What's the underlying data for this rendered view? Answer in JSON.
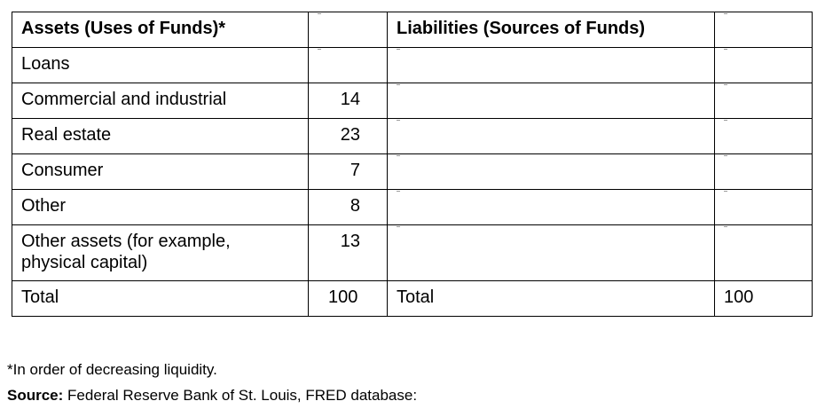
{
  "table": {
    "header": {
      "assets_label": "Assets (Uses of Funds)*",
      "assets_value": "",
      "liabilities_label": "Liabilities (Sources of Funds)",
      "liabilities_value": ""
    },
    "rows": [
      {
        "asset": "Loans",
        "value": ""
      },
      {
        "asset": "Commercial and industrial",
        "value": "14"
      },
      {
        "asset": "Real estate",
        "value": "23"
      },
      {
        "asset": "Consumer",
        "value": "7"
      },
      {
        "asset": "Other",
        "value": "8"
      },
      {
        "asset": "Other assets (for example, physical capital)",
        "value": "13"
      }
    ],
    "total": {
      "asset_label": "Total",
      "asset_value": "100",
      "liability_label": "Total",
      "liability_value": "100"
    }
  },
  "footnotes": {
    "liquidity_note": "*In order of decreasing liquidity.",
    "source_label": "Source:",
    "source_text": " Federal Reserve Bank of St. Louis, FRED database:"
  }
}
